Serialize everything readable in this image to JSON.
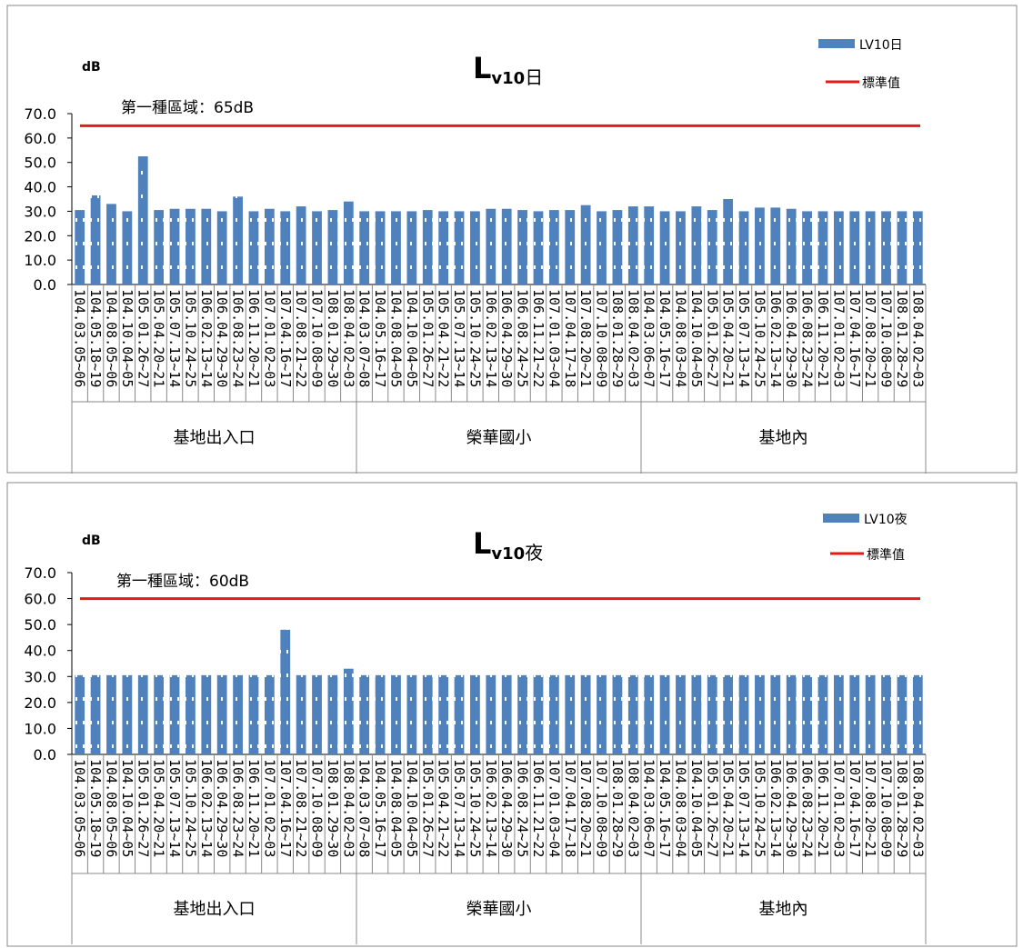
{
  "colors": {
    "bar": "#4f81bd",
    "bar_pattern": "#ffffff",
    "standard_line": "#e21a1a",
    "frame": "#888888",
    "axis": "#000000"
  },
  "chart_data": [
    {
      "type": "bar",
      "title_main": "L",
      "title_sub": "v10",
      "title_suffix": "日",
      "unit_label": "dB",
      "standard_label": "第一種區域：65dB",
      "standard_value": 65,
      "ylim": [
        0,
        70
      ],
      "yticks": [
        "70.0",
        "60.0",
        "50.0",
        "40.0",
        "30.0",
        "20.0",
        "10.0",
        "0.0"
      ],
      "legend": [
        {
          "name": "LV10日",
          "kind": "bar"
        },
        {
          "name": "標準值",
          "kind": "line"
        }
      ],
      "groups": [
        {
          "name": "基地出入口",
          "categories": [
            "104.03.05~06",
            "104.05.18~19",
            "104.08.05~06",
            "104.10.04~05",
            "105.01.26~27",
            "105.04.20~21",
            "105.07.13~14",
            "105.10.24~25",
            "106.02.13~14",
            "106.04.29~30",
            "106.08.23~24",
            "106.11.20~21",
            "107.01.02~03",
            "107.04.16~17",
            "107.08.21~22",
            "107.10.08~09",
            "108.01.29~30",
            "108.04.02~03"
          ]
        },
        {
          "name": "榮華國小",
          "categories": [
            "104.03.07~08",
            "104.05.16~17",
            "104.08.04~05",
            "104.10.04~05",
            "105.01.26~27",
            "105.04.21~22",
            "105.07.13~14",
            "105.10.24~25",
            "106.02.13~14",
            "106.04.29~30",
            "106.08.24~25",
            "106.11.21~22",
            "107.01.03~04",
            "107.04.17~18",
            "107.08.20~21",
            "107.10.08~09",
            "108.01.28~29",
            "108.04.02~03"
          ]
        },
        {
          "name": "基地內",
          "categories": [
            "104.03.06~07",
            "104.05.16~17",
            "104.08.03~04",
            "104.10.04~05",
            "105.01.26~27",
            "105.04.20~21",
            "105.07.13~14",
            "105.10.24~25",
            "106.02.13~14",
            "106.04.29~30",
            "106.08.23~24",
            "106.11.20~21",
            "107.01.02~03",
            "107.04.16~17",
            "107.08.20~21",
            "107.10.08~09",
            "108.01.28~29",
            "108.04.02~03"
          ]
        }
      ],
      "series": [
        {
          "name": "LV10日",
          "values": [
            30.5,
            36.5,
            33.0,
            30.0,
            52.5,
            30.5,
            31.0,
            31.0,
            31.0,
            30.0,
            36.0,
            30.0,
            31.0,
            30.0,
            32.0,
            30.0,
            30.5,
            34.0,
            30.0,
            30.0,
            30.0,
            30.0,
            30.5,
            30.0,
            30.0,
            30.0,
            31.0,
            31.0,
            30.5,
            30.0,
            30.5,
            30.5,
            32.5,
            30.0,
            30.5,
            32.0,
            32.0,
            30.0,
            30.0,
            32.0,
            30.5,
            35.0,
            30.0,
            31.5,
            31.5,
            31.0,
            30.0,
            30.0,
            30.0,
            30.0,
            30.0,
            30.0,
            30.0,
            30.0
          ]
        }
      ]
    },
    {
      "type": "bar",
      "title_main": "L",
      "title_sub": "v10",
      "title_suffix": "夜",
      "unit_label": "dB",
      "standard_label": "第一種區域：60dB",
      "standard_value": 60,
      "ylim": [
        0,
        70
      ],
      "yticks": [
        "70.0",
        "60.0",
        "50.0",
        "40.0",
        "30.0",
        "20.0",
        "10.0",
        "0.0"
      ],
      "legend": [
        {
          "name": "LV10夜",
          "kind": "bar"
        },
        {
          "name": "標準值",
          "kind": "line"
        }
      ],
      "groups": [
        {
          "name": "基地出入口",
          "categories": [
            "104.03.05~06",
            "104.05.18~19",
            "104.08.05~06",
            "104.10.04~05",
            "105.01.26~27",
            "105.04.20~21",
            "105.07.13~14",
            "105.10.24~25",
            "106.02.13~14",
            "106.04.29~30",
            "106.08.23~24",
            "106.11.20~21",
            "107.01.02~03",
            "107.04.16~17",
            "107.08.21~22",
            "107.10.08~09",
            "108.01.29~30",
            "108.04.02~03"
          ]
        },
        {
          "name": "榮華國小",
          "categories": [
            "104.03.07~08",
            "104.05.16~17",
            "104.08.04~05",
            "104.10.04~05",
            "105.01.26~27",
            "105.04.21~22",
            "105.07.13~14",
            "105.10.24~25",
            "106.02.13~14",
            "106.04.29~30",
            "106.08.24~25",
            "106.11.21~22",
            "107.01.03~04",
            "107.04.17~18",
            "107.08.20~21",
            "107.10.08~09",
            "108.01.28~29",
            "108.04.02~03"
          ]
        },
        {
          "name": "基地內",
          "categories": [
            "104.03.06~07",
            "104.05.16~17",
            "104.08.03~04",
            "104.10.04~05",
            "105.01.26~27",
            "105.04.20~21",
            "105.07.13~14",
            "105.10.24~25",
            "106.02.13~14",
            "106.04.29~30",
            "106.08.23~24",
            "106.11.20~21",
            "107.01.02~03",
            "107.04.16~17",
            "107.08.20~21",
            "107.10.08~09",
            "108.01.28~29",
            "108.04.02~03"
          ]
        }
      ],
      "series": [
        {
          "name": "LV10夜",
          "values": [
            30.5,
            30.5,
            30.5,
            30.5,
            30.5,
            30.5,
            30.5,
            30.5,
            30.5,
            30.5,
            30.5,
            30.5,
            30.5,
            48.0,
            30.5,
            30.5,
            30.5,
            33.0,
            30.5,
            30.5,
            30.5,
            30.5,
            30.5,
            30.5,
            30.5,
            30.5,
            30.5,
            30.5,
            30.5,
            30.5,
            30.5,
            30.5,
            30.5,
            30.5,
            30.5,
            30.5,
            30.5,
            30.5,
            30.5,
            30.5,
            30.5,
            30.5,
            30.5,
            30.5,
            30.5,
            30.5,
            30.5,
            30.5,
            30.5,
            30.5,
            30.5,
            30.5,
            30.5,
            30.5
          ]
        }
      ]
    }
  ]
}
